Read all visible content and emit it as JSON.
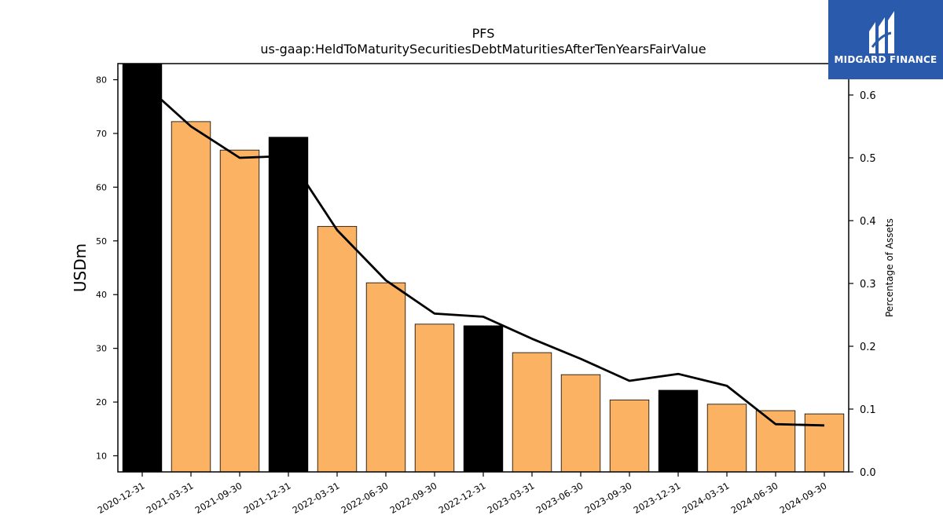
{
  "chart_data": {
    "type": "bar",
    "title": "PFS",
    "subtitle": "us-gaap:HeldToMaturitySecuritiesDebtMaturitiesAfterTenYearsFairValue",
    "ylabel": "USDm",
    "y2label": "Percentage of Assets",
    "ylim": [
      7,
      83
    ],
    "y2lim": [
      0.0,
      0.65
    ],
    "yticks": [
      10,
      20,
      30,
      40,
      50,
      60,
      70,
      80
    ],
    "y2ticks": [
      "0.0",
      "0.1",
      "0.2",
      "0.3",
      "0.4",
      "0.5",
      "0.6"
    ],
    "categories": [
      "2020-12-31",
      "2021-03-31",
      "2021-09-30",
      "2021-12-31",
      "2022-03-31",
      "2022-06-30",
      "2022-09-30",
      "2022-12-31",
      "2023-03-31",
      "2023-06-30",
      "2023-09-30",
      "2023-12-31",
      "2024-03-31",
      "2024-06-30",
      "2024-09-30"
    ],
    "series": [
      {
        "values": [
          83.0,
          72.2,
          66.9,
          69.3,
          52.7,
          42.2,
          34.5,
          34.2,
          29.2,
          25.1,
          20.4,
          22.2,
          19.6,
          18.4,
          17.8
        ],
        "colors": [
          "#000000",
          "#fbb363",
          "#fbb363",
          "#000000",
          "#fbb363",
          "#fbb363",
          "#fbb363",
          "#000000",
          "#fbb363",
          "#fbb363",
          "#fbb363",
          "#000000",
          "#fbb363",
          "#fbb363",
          "#fbb363"
        ]
      },
      {
        "axis": "right",
        "type": "line",
        "values": [
          0.62,
          0.55,
          0.5,
          0.503,
          0.385,
          0.305,
          0.252,
          0.247,
          0.212,
          0.18,
          0.145,
          0.156,
          0.137,
          0.076,
          0.074
        ],
        "color": "#000000"
      }
    ]
  },
  "logo": {
    "name": "MIDGARD FINANCE"
  }
}
